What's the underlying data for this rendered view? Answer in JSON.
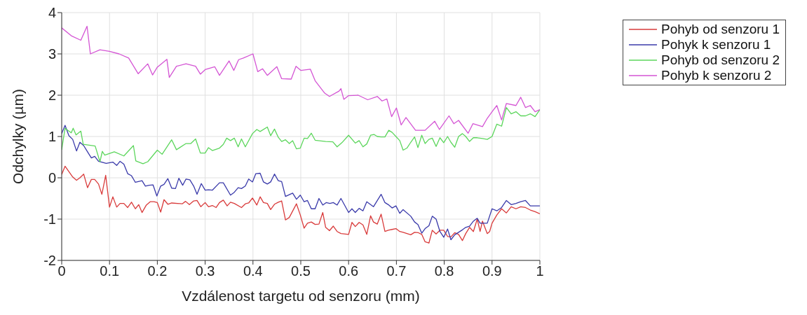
{
  "chart_data": {
    "type": "line",
    "xlabel": "Vzdálenost targetu od senzoru (mm)",
    "ylabel": "Odchylky (µm)",
    "xlim": [
      0,
      1
    ],
    "xticks": [
      0,
      0.1,
      0.2,
      0.3,
      0.4,
      0.5,
      0.6,
      0.7,
      0.8,
      0.9,
      1
    ],
    "ylim": [
      -2,
      4
    ],
    "yticks": [
      -2,
      -1,
      0,
      1,
      2,
      3,
      4
    ],
    "grid": true,
    "legend": "top right",
    "marker": "none",
    "line_style": "solid",
    "series": [
      {
        "name": "Pohyb od senzoru 1",
        "color": "#d93b3b",
        "x": [
          0,
          0.007,
          0.015,
          0.023,
          0.031,
          0.038,
          0.046,
          0.054,
          0.062,
          0.069,
          0.077,
          0.084,
          0.092,
          0.1,
          0.107,
          0.115,
          0.122,
          0.13,
          0.138,
          0.146,
          0.154,
          0.161,
          0.168,
          0.177,
          0.185,
          0.193,
          0.2,
          0.207,
          0.214,
          0.222,
          0.23,
          0.252,
          0.259,
          0.267,
          0.276,
          0.283,
          0.291,
          0.3,
          0.307,
          0.315,
          0.323,
          0.33,
          0.338,
          0.346,
          0.353,
          0.361,
          0.376,
          0.384,
          0.391,
          0.399,
          0.408,
          0.415,
          0.422,
          0.43,
          0.437,
          0.445,
          0.453,
          0.46,
          0.468,
          0.476,
          0.491,
          0.499,
          0.507,
          0.514,
          0.522,
          0.53,
          0.538,
          0.546,
          0.552,
          0.56,
          0.568,
          0.576,
          0.584,
          0.6,
          0.607,
          0.614,
          0.622,
          0.63,
          0.638,
          0.646,
          0.652,
          0.66,
          0.668,
          0.676,
          0.683,
          0.691,
          0.699,
          0.707,
          0.714,
          0.73,
          0.738,
          0.746,
          0.753,
          0.76,
          0.768,
          0.775,
          0.783,
          0.791,
          0.799,
          0.807,
          0.814,
          0.822,
          0.83,
          0.838,
          0.845,
          0.853,
          0.861,
          0.869,
          0.875,
          0.88,
          0.89,
          0.895,
          0.9,
          0.91,
          0.92,
          0.93,
          0.94,
          0.95,
          0.96,
          0.97,
          0.98,
          0.99,
          1
        ],
        "values": [
          0.08,
          0.28,
          0.15,
          0.02,
          -0.06,
          0,
          0.09,
          -0.24,
          -0.04,
          -0.04,
          -0.15,
          -0.4,
          0.06,
          -0.71,
          -0.46,
          -0.71,
          -0.62,
          -0.62,
          -0.72,
          -0.59,
          -0.75,
          -0.65,
          -0.84,
          -0.66,
          -0.58,
          -0.58,
          -0.6,
          -0.83,
          -0.53,
          -0.64,
          -0.61,
          -0.63,
          -0.57,
          -0.65,
          -0.56,
          -0.55,
          -0.7,
          -0.6,
          -0.7,
          -0.67,
          -0.72,
          -0.6,
          -0.54,
          -0.68,
          -0.59,
          -0.62,
          -0.72,
          -0.63,
          -0.61,
          -0.49,
          -0.66,
          -0.46,
          -0.6,
          -0.62,
          -0.77,
          -0.64,
          -0.59,
          -0.56,
          -1.02,
          -0.96,
          -0.63,
          -0.9,
          -1.22,
          -1.1,
          -1.07,
          -1.13,
          -1.12,
          -0.84,
          -1.2,
          -1.28,
          -1.17,
          -1.3,
          -1.35,
          -1.37,
          -1.08,
          -1.18,
          -1.08,
          -1.14,
          -1.37,
          -0.92,
          -1.07,
          -1.12,
          -0.88,
          -1.3,
          -1.27,
          -1.25,
          -1.23,
          -1.3,
          -1.32,
          -1.38,
          -1.32,
          -1.33,
          -1.37,
          -1.55,
          -1.58,
          -1.27,
          -1.36,
          -1.27,
          -1.27,
          -1.42,
          -1.43,
          -1.33,
          -1.37,
          -1.52,
          -1.35,
          -1.2,
          -1.3,
          -1,
          -1.3,
          -1.05,
          -1.35,
          -1.3,
          -1.1,
          -0.9,
          -0.75,
          -0.85,
          -0.7,
          -0.75,
          -0.7,
          -0.72,
          -0.78,
          -0.82,
          -0.87
        ]
      },
      {
        "name": "Pohyk k senzoru 1",
        "color": "#3a3aaa",
        "x": [
          0,
          0.007,
          0.015,
          0.023,
          0.031,
          0.038,
          0.046,
          0.054,
          0.062,
          0.069,
          0.077,
          0.093,
          0.107,
          0.115,
          0.122,
          0.13,
          0.138,
          0.146,
          0.154,
          0.168,
          0.175,
          0.183,
          0.191,
          0.199,
          0.207,
          0.214,
          0.222,
          0.23,
          0.238,
          0.245,
          0.253,
          0.26,
          0.268,
          0.276,
          0.283,
          0.292,
          0.3,
          0.307,
          0.315,
          0.33,
          0.338,
          0.353,
          0.361,
          0.369,
          0.376,
          0.384,
          0.391,
          0.399,
          0.406,
          0.415,
          0.422,
          0.43,
          0.437,
          0.445,
          0.453,
          0.46,
          0.468,
          0.483,
          0.491,
          0.499,
          0.507,
          0.514,
          0.522,
          0.53,
          0.538,
          0.546,
          0.553,
          0.561,
          0.568,
          0.576,
          0.584,
          0.6,
          0.607,
          0.614,
          0.622,
          0.63,
          0.638,
          0.652,
          0.668,
          0.676,
          0.683,
          0.691,
          0.699,
          0.707,
          0.714,
          0.73,
          0.738,
          0.745,
          0.753,
          0.76,
          0.768,
          0.775,
          0.783,
          0.791,
          0.799,
          0.807,
          0.814,
          0.822,
          0.838,
          0.845,
          0.853,
          0.861,
          0.869,
          0.875,
          0.89,
          0.9,
          0.91,
          0.92,
          0.93,
          0.94,
          0.95,
          0.96,
          0.97,
          0.98,
          1
        ],
        "values": [
          1.07,
          1.27,
          1.02,
          0.93,
          0.65,
          0.86,
          0.78,
          0.63,
          0.48,
          0.52,
          0.4,
          0.35,
          0.38,
          0.3,
          0.4,
          0.33,
          0.1,
          0.05,
          -0.11,
          -0.07,
          -0.2,
          -0.18,
          -0.17,
          -0.44,
          -0.2,
          -0.16,
          -0.02,
          -0.25,
          -0.26,
          -0.01,
          -0.18,
          -0.03,
          -0.05,
          -0.2,
          -0.4,
          -0.14,
          -0.3,
          -0.29,
          -0.3,
          -0.12,
          -0.12,
          -0.42,
          -0.35,
          -0.24,
          -0.26,
          -0.2,
          -0.03,
          -0.1,
          0.1,
          0.11,
          -0.1,
          -0.15,
          -0.1,
          0.09,
          -0.07,
          -0.09,
          -0.45,
          -0.37,
          -0.52,
          -0.42,
          -0.58,
          -0.55,
          -0.75,
          -0.75,
          -0.5,
          -0.66,
          -0.6,
          -0.62,
          -0.6,
          -0.66,
          -0.5,
          -0.84,
          -0.75,
          -0.84,
          -0.74,
          -0.8,
          -0.58,
          -0.7,
          -0.4,
          -0.6,
          -0.65,
          -0.73,
          -0.68,
          -0.86,
          -0.77,
          -0.93,
          -1.07,
          -1.13,
          -1.34,
          -1.23,
          -1.16,
          -0.93,
          -1,
          -1.3,
          -1.44,
          -1.24,
          -1.5,
          -1.38,
          -1.26,
          -1.2,
          -1.17,
          -1.05,
          -0.98,
          -1.1,
          -1.1,
          -0.75,
          -0.8,
          -0.72,
          -0.55,
          -0.65,
          -0.62,
          -0.58,
          -0.55,
          -0.68,
          -0.68
        ]
      },
      {
        "name": "Pohyb od senzoru 2",
        "color": "#5cd65c",
        "x": [
          0,
          0.007,
          0.02,
          0.024,
          0.03,
          0.04,
          0.045,
          0.07,
          0.08,
          0.085,
          0.09,
          0.11,
          0.13,
          0.15,
          0.155,
          0.17,
          0.18,
          0.2,
          0.21,
          0.23,
          0.24,
          0.26,
          0.27,
          0.28,
          0.29,
          0.3,
          0.307,
          0.315,
          0.33,
          0.338,
          0.345,
          0.353,
          0.361,
          0.369,
          0.376,
          0.384,
          0.399,
          0.408,
          0.415,
          0.43,
          0.437,
          0.445,
          0.453,
          0.46,
          0.468,
          0.476,
          0.483,
          0.491,
          0.499,
          0.507,
          0.514,
          0.522,
          0.53,
          0.552,
          0.567,
          0.576,
          0.586,
          0.6,
          0.614,
          0.622,
          0.63,
          0.638,
          0.646,
          0.653,
          0.66,
          0.668,
          0.676,
          0.684,
          0.691,
          0.699,
          0.707,
          0.714,
          0.722,
          0.73,
          0.738,
          0.745,
          0.753,
          0.76,
          0.768,
          0.775,
          0.783,
          0.791,
          0.799,
          0.807,
          0.814,
          0.822,
          0.83,
          0.838,
          0.845,
          0.853,
          0.861,
          0.869,
          0.88,
          0.89,
          0.9,
          0.91,
          0.92,
          0.93,
          0.94,
          0.95,
          0.96,
          0.97,
          0.98,
          0.99,
          1
        ],
        "values": [
          0.68,
          1.2,
          1.09,
          1.2,
          1.04,
          1.13,
          0.81,
          0.77,
          0.39,
          0.64,
          0.55,
          0.63,
          0.53,
          0.78,
          0.41,
          0.34,
          0.39,
          0.67,
          0.57,
          0.92,
          0.68,
          0.83,
          0.83,
          0.94,
          0.6,
          0.6,
          0.73,
          0.66,
          0.72,
          0.81,
          0.96,
          0.9,
          0.96,
          0.75,
          0.94,
          0.75,
          1.07,
          1.17,
          1.12,
          1.23,
          1.02,
          1.18,
          0.98,
          0.88,
          0.92,
          0.83,
          0.9,
          0.7,
          0.72,
          0.96,
          0.95,
          1.08,
          0.91,
          0.88,
          0.87,
          0.75,
          0.85,
          1.03,
          0.84,
          0.9,
          0.75,
          0.82,
          1.03,
          1.05,
          1,
          0.99,
          0.99,
          1.15,
          1.1,
          1,
          0.9,
          0.67,
          0.72,
          0.86,
          0.99,
          0.73,
          1.03,
          0.83,
          0.93,
          0.96,
          0.76,
          0.97,
          0.85,
          1,
          0.86,
          0.74,
          1,
          1.07,
          1,
          0.88,
          0.97,
          0.97,
          0.95,
          0.93,
          1,
          1.3,
          1.25,
          1.7,
          1.55,
          1.6,
          1.5,
          1.5,
          1.55,
          1.48,
          1.65
        ]
      },
      {
        "name": "Pohyb k senzoru 2",
        "color": "#d455d4",
        "x": [
          0,
          0.02,
          0.04,
          0.053,
          0.06,
          0.08,
          0.1,
          0.12,
          0.14,
          0.16,
          0.18,
          0.19,
          0.2,
          0.22,
          0.225,
          0.24,
          0.26,
          0.28,
          0.29,
          0.3,
          0.32,
          0.33,
          0.35,
          0.36,
          0.37,
          0.38,
          0.4,
          0.41,
          0.42,
          0.43,
          0.45,
          0.46,
          0.48,
          0.49,
          0.5,
          0.52,
          0.53,
          0.55,
          0.56,
          0.58,
          0.584,
          0.59,
          0.6,
          0.62,
          0.64,
          0.66,
          0.67,
          0.68,
          0.69,
          0.7,
          0.71,
          0.72,
          0.74,
          0.76,
          0.78,
          0.79,
          0.81,
          0.82,
          0.83,
          0.85,
          0.86,
          0.88,
          0.89,
          0.9,
          0.91,
          0.92,
          0.93,
          0.95,
          0.96,
          0.97,
          0.98,
          0.99,
          1
        ],
        "values": [
          3.63,
          3.44,
          3.33,
          3.67,
          3,
          3.1,
          3.06,
          3,
          2.9,
          2.52,
          2.76,
          2.49,
          2.68,
          2.87,
          2.43,
          2.7,
          2.76,
          2.7,
          2.51,
          2.62,
          2.69,
          2.48,
          2.83,
          2.6,
          2.86,
          2.9,
          3,
          2.57,
          2.64,
          2.48,
          2.69,
          2.4,
          2.39,
          2.7,
          2.6,
          2.63,
          2.35,
          2.05,
          1.97,
          2.1,
          2.16,
          1.9,
          1.99,
          2,
          1.89,
          1.97,
          1.86,
          1.91,
          1.48,
          1.69,
          1.28,
          1.46,
          1.15,
          1.15,
          1.37,
          1.17,
          1.5,
          1.31,
          1.39,
          1.08,
          1.31,
          1.24,
          1.44,
          1.6,
          1.75,
          1.4,
          1.8,
          1.75,
          1.95,
          1.7,
          1.75,
          1.6,
          1.65
        ]
      }
    ]
  }
}
